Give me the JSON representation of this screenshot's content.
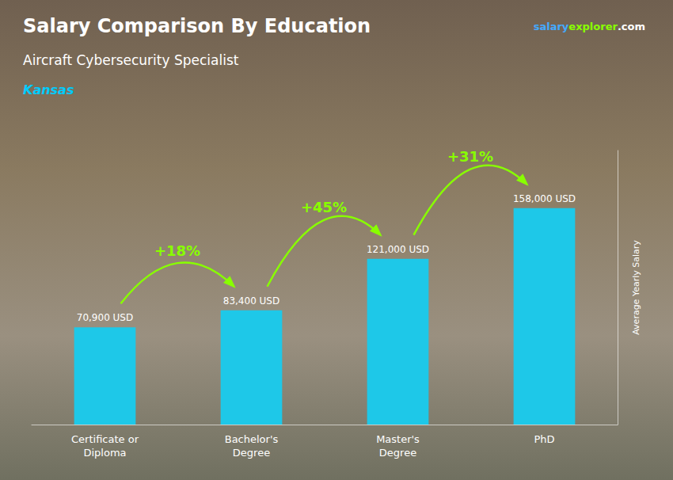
{
  "chart_data": {
    "type": "bar",
    "title": "Salary Comparison By Education",
    "subtitle": "Aircraft Cybersecurity Specialist",
    "location": {
      "text": "Kansas",
      "color": "#00ccff"
    },
    "watermark": [
      {
        "text": "salary",
        "color": "#44aaff"
      },
      {
        "text": "explorer",
        "color": "#88ff00"
      },
      {
        "text": ".com",
        "color": "#ffffff"
      }
    ],
    "ylabel": "Average Yearly Salary",
    "categories": [
      "Certificate or\nDiploma",
      "Bachelor's\nDegree",
      "Master's\nDegree",
      "PhD"
    ],
    "values": [
      70900,
      83400,
      121000,
      158000
    ],
    "value_labels": [
      "70,900 USD",
      "83,400 USD",
      "121,000 USD",
      "158,000 USD"
    ],
    "data_labels": true,
    "color": "#1ec8e8",
    "annotations": [
      {
        "text": "+18%",
        "color": "#88ff00"
      },
      {
        "text": "+45%",
        "color": "#88ff00"
      },
      {
        "text": "+31%",
        "color": "#88ff00"
      }
    ],
    "ylim": [
      0,
      200000
    ],
    "tick_labels": "x",
    "grid": false
  }
}
